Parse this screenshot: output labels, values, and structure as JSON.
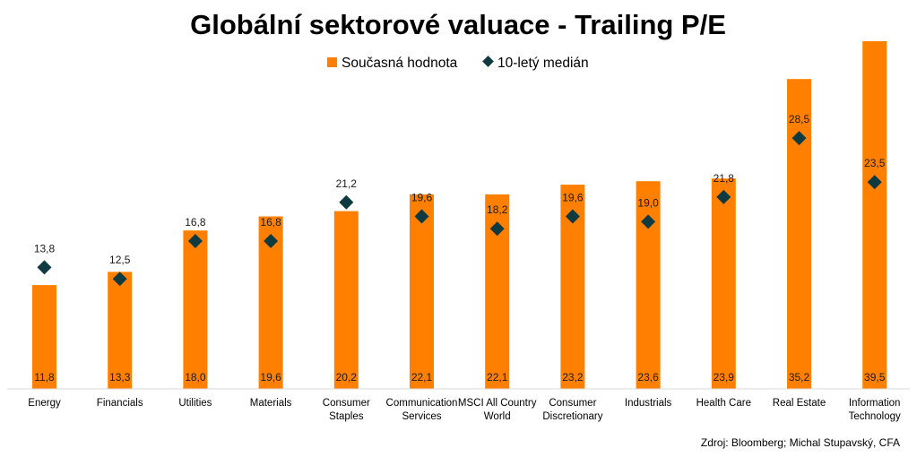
{
  "chart_data": {
    "type": "bar",
    "title": "Globální sektorové valuace - Trailing P/E",
    "categories": [
      [
        "Energy"
      ],
      [
        "Financials"
      ],
      [
        "Utilities"
      ],
      [
        "Materials"
      ],
      [
        "Consumer",
        "Staples"
      ],
      [
        "Communication",
        "Services"
      ],
      [
        "MSCI All Country",
        "World"
      ],
      [
        "Consumer",
        "Discretionary"
      ],
      [
        "Industrials"
      ],
      [
        "Health Care"
      ],
      [
        "Real Estate"
      ],
      [
        "Information",
        "Technology"
      ]
    ],
    "series": [
      {
        "name": "Současná hodnota",
        "kind": "bar",
        "color": "#FF8000",
        "values": [
          11.8,
          13.3,
          18.0,
          19.6,
          20.2,
          22.1,
          22.1,
          23.2,
          23.6,
          23.9,
          35.2,
          39.5
        ],
        "labels": [
          "11,8",
          "13,3",
          "18,0",
          "19,6",
          "20,2",
          "22,1",
          "22,1",
          "23,2",
          "23,6",
          "23,9",
          "35,2",
          "39,5"
        ]
      },
      {
        "name": "10-letý medián",
        "kind": "marker",
        "marker": "diamond",
        "color": "#0E3A40",
        "values": [
          13.8,
          12.5,
          16.8,
          16.8,
          21.2,
          19.6,
          18.2,
          19.6,
          19.0,
          21.8,
          28.5,
          23.5
        ],
        "labels": [
          "13,8",
          "12,5",
          "16,8",
          "16,8",
          "21,2",
          "19,6",
          "18,2",
          "19,6",
          "19,0",
          "21,8",
          "28,5",
          "23,5"
        ]
      }
    ],
    "ylim": [
      0,
      39.5
    ],
    "grid": false,
    "legend": "top-center",
    "source": "Zdroj: Bloomberg; Michal Stupavský, CFA"
  }
}
